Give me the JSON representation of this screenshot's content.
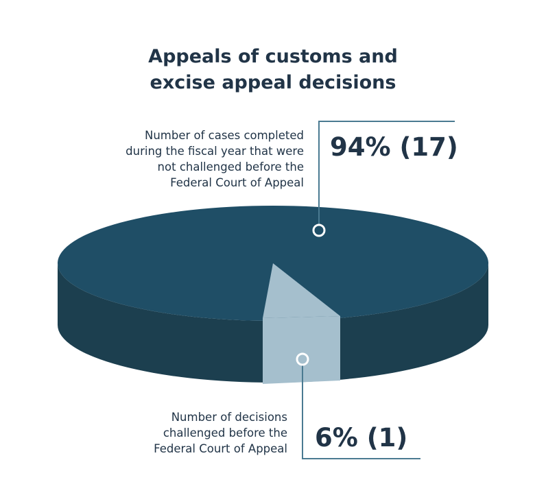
{
  "chart_data": {
    "type": "pie",
    "title_lines": [
      "Appeals of customs and",
      "excise appeal decisions"
    ],
    "slices": [
      {
        "label_lines": [
          "Number of cases completed",
          "during the fiscal year that were",
          "not challenged before the",
          "Federal Court of Appeal"
        ],
        "percent": 94,
        "count": 17,
        "value_text": "94% (17)",
        "color": "#1f4e66",
        "side_color": "#1c3f4f"
      },
      {
        "label_lines": [
          "Number of decisions",
          "challenged before the",
          "Federal Court of Appeal"
        ],
        "percent": 6,
        "count": 1,
        "value_text": "6% (1)",
        "color": "#a5bfcd",
        "side_color": "#a5bfcd"
      }
    ],
    "style": "3d-pie",
    "accent_color": "#213447",
    "leader_line_color": "#4a7a91"
  }
}
